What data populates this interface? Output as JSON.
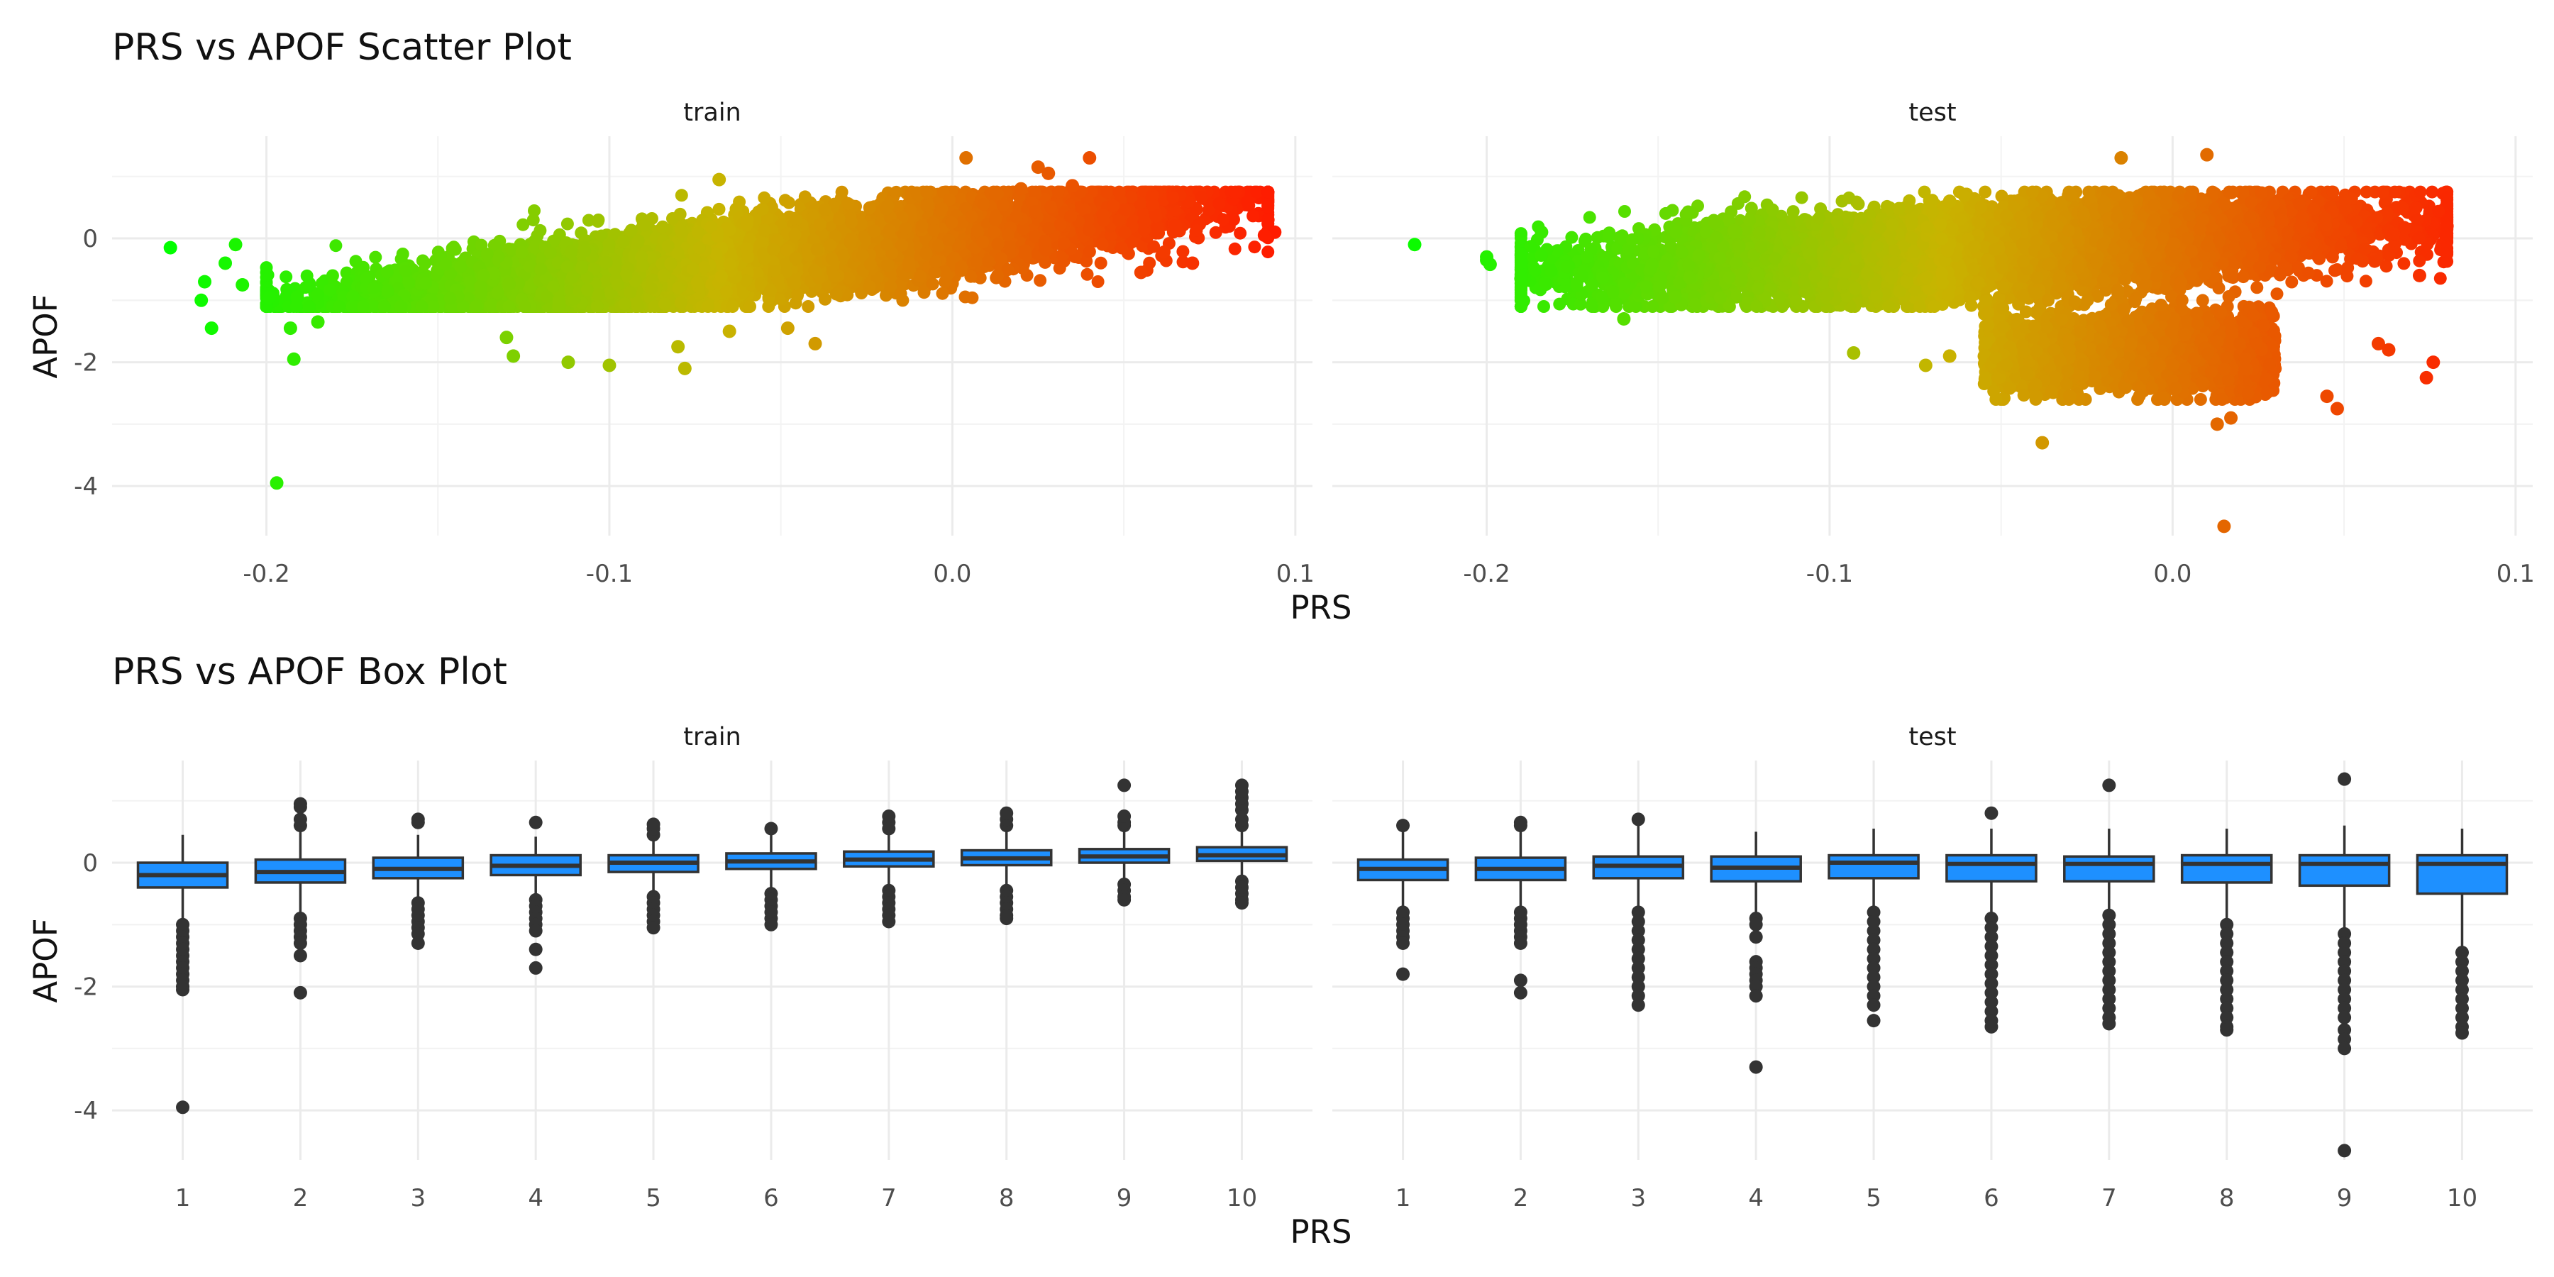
{
  "figure": {
    "scatter_title": "PRS vs APOF Scatter Plot",
    "box_title": "PRS vs APOF Box Plot"
  },
  "chart_data": [
    {
      "type": "scatter",
      "title": "PRS vs APOF Scatter Plot",
      "xlabel": "PRS",
      "ylabel": "APOF",
      "facets": [
        "train",
        "test"
      ],
      "xlim": [
        -0.245,
        0.105
      ],
      "ylim": [
        -4.8,
        1.65
      ],
      "x_ticks": [
        -0.2,
        -0.1,
        0.0,
        0.1
      ],
      "x_tick_labels": [
        "-0.2",
        "-0.1",
        "0.0",
        "0.1"
      ],
      "y_ticks": [
        -4,
        -2,
        0
      ],
      "y_tick_labels": [
        "-4",
        "-2",
        "0"
      ],
      "grid": true,
      "color_encoding": "PRS value, gradient green (low) to red (high)",
      "colors": {
        "low": "#00ff00",
        "mid": "#c8b400",
        "high": "#ff1a00"
      },
      "series": [
        {
          "facet": "train",
          "approximate_points": 9000,
          "trend": {
            "slope": 6.3,
            "intercept": 0.06
          },
          "spread_sd": 0.3,
          "x_range": [
            -0.2,
            0.092
          ],
          "outliers": [
            {
              "x": -0.228,
              "y": -0.15
            },
            {
              "x": -0.216,
              "y": -1.45
            },
            {
              "x": -0.218,
              "y": -0.7
            },
            {
              "x": -0.219,
              "y": -1.0
            },
            {
              "x": -0.212,
              "y": -0.4
            },
            {
              "x": -0.209,
              "y": -0.1
            },
            {
              "x": -0.207,
              "y": -0.75
            },
            {
              "x": -0.197,
              "y": -3.95
            },
            {
              "x": -0.192,
              "y": -1.95
            },
            {
              "x": -0.193,
              "y": -1.45
            },
            {
              "x": -0.185,
              "y": -1.35
            },
            {
              "x": -0.191,
              "y": -0.95
            },
            {
              "x": -0.13,
              "y": -1.6
            },
            {
              "x": -0.128,
              "y": -1.9
            },
            {
              "x": -0.112,
              "y": -2.0
            },
            {
              "x": -0.1,
              "y": -2.05
            },
            {
              "x": -0.078,
              "y": -2.1
            },
            {
              "x": -0.08,
              "y": -1.75
            },
            {
              "x": -0.065,
              "y": -1.5
            },
            {
              "x": -0.048,
              "y": -1.45
            },
            {
              "x": -0.04,
              "y": -1.7
            },
            {
              "x": -0.068,
              "y": 0.95
            },
            {
              "x": 0.004,
              "y": 1.3
            },
            {
              "x": 0.025,
              "y": 1.15
            },
            {
              "x": 0.028,
              "y": 1.05
            },
            {
              "x": 0.04,
              "y": 1.3
            },
            {
              "x": 0.02,
              "y": 0.8
            },
            {
              "x": 0.035,
              "y": 0.85
            },
            {
              "x": 0.055,
              "y": -0.55
            },
            {
              "x": 0.07,
              "y": -0.4
            },
            {
              "x": 0.092,
              "y": 0.3
            },
            {
              "x": 0.094,
              "y": 0.1
            },
            {
              "x": 0.091,
              "y": 0.05
            }
          ]
        },
        {
          "facet": "test",
          "approximate_points": 9000,
          "trend": {
            "slope": 3.2,
            "intercept": 0.0
          },
          "spread_sd": 0.33,
          "x_range": [
            -0.19,
            0.08
          ],
          "lower_cluster": {
            "x_range": [
              -0.055,
              0.03
            ],
            "y_center": -1.85,
            "y_sd": 0.32,
            "approximate_points": 2000
          },
          "outliers": [
            {
              "x": -0.221,
              "y": -0.1
            },
            {
              "x": -0.2,
              "y": -0.35
            },
            {
              "x": -0.199,
              "y": -0.42
            },
            {
              "x": -0.2,
              "y": -0.3
            },
            {
              "x": -0.19,
              "y": -0.65
            },
            {
              "x": -0.184,
              "y": 0.1
            },
            {
              "x": -0.16,
              "y": -1.3
            },
            {
              "x": -0.145,
              "y": -0.95
            },
            {
              "x": -0.093,
              "y": -1.85
            },
            {
              "x": -0.072,
              "y": -2.05
            },
            {
              "x": -0.065,
              "y": -1.9
            },
            {
              "x": -0.038,
              "y": -3.3
            },
            {
              "x": -0.03,
              "y": -2.55
            },
            {
              "x": -0.015,
              "y": 1.3
            },
            {
              "x": 0.01,
              "y": 1.35
            },
            {
              "x": -0.065,
              "y": 0.6
            },
            {
              "x": 0.015,
              "y": -4.65
            },
            {
              "x": 0.013,
              "y": -3.0
            },
            {
              "x": 0.017,
              "y": -2.9
            },
            {
              "x": 0.045,
              "y": -2.55
            },
            {
              "x": 0.048,
              "y": -2.75
            },
            {
              "x": 0.06,
              "y": -1.7
            },
            {
              "x": 0.063,
              "y": -1.8
            },
            {
              "x": 0.072,
              "y": -0.6
            },
            {
              "x": 0.076,
              "y": -2.0
            },
            {
              "x": 0.074,
              "y": -2.25
            },
            {
              "x": 0.08,
              "y": 0.2
            }
          ]
        }
      ]
    },
    {
      "type": "box",
      "title": "PRS vs APOF Box Plot",
      "xlabel": "PRS",
      "ylabel": "APOF",
      "facets": [
        "train",
        "test"
      ],
      "categories": [
        "1",
        "2",
        "3",
        "4",
        "5",
        "6",
        "7",
        "8",
        "9",
        "10"
      ],
      "ylim": [
        -4.8,
        1.65
      ],
      "y_ticks": [
        -4,
        -2,
        0
      ],
      "y_tick_labels": [
        "-4",
        "-2",
        "0"
      ],
      "grid": true,
      "box_fill": "#1e90ff",
      "line_color": "#333333",
      "series": [
        {
          "facet": "train",
          "boxes": [
            {
              "q1": -0.4,
              "median": -0.2,
              "q3": 0.0,
              "whisker_low": -0.95,
              "whisker_high": 0.45,
              "outliers": [
                -1.0,
                -1.1,
                -1.2,
                -1.3,
                -1.4,
                -1.5,
                -1.6,
                -1.7,
                -1.8,
                -1.9,
                -2.0,
                -2.05,
                -3.95
              ]
            },
            {
              "q1": -0.32,
              "median": -0.15,
              "q3": 0.05,
              "whisker_low": -0.85,
              "whisker_high": 0.55,
              "outliers": [
                -0.9,
                -1.0,
                -1.1,
                -1.2,
                -1.3,
                -1.5,
                -2.1,
                0.6,
                0.7,
                0.9,
                0.95
              ]
            },
            {
              "q1": -0.25,
              "median": -0.1,
              "q3": 0.08,
              "whisker_low": -0.6,
              "whisker_high": 0.45,
              "outliers": [
                -0.65,
                -0.75,
                -0.85,
                -0.95,
                -1.05,
                -1.15,
                -1.3,
                0.65,
                0.7
              ]
            },
            {
              "q1": -0.2,
              "median": -0.05,
              "q3": 0.12,
              "whisker_low": -0.55,
              "whisker_high": 0.42,
              "outliers": [
                -0.6,
                -0.7,
                -0.8,
                -0.9,
                -1.0,
                -1.1,
                -1.4,
                -1.7,
                0.65
              ]
            },
            {
              "q1": -0.15,
              "median": 0.0,
              "q3": 0.12,
              "whisker_low": -0.5,
              "whisker_high": 0.42,
              "outliers": [
                -0.55,
                -0.65,
                -0.75,
                -0.85,
                -0.95,
                -1.05,
                0.45,
                0.55,
                0.62
              ]
            },
            {
              "q1": -0.1,
              "median": 0.02,
              "q3": 0.15,
              "whisker_low": -0.45,
              "whisker_high": 0.45,
              "outliers": [
                -0.5,
                -0.6,
                -0.7,
                -0.8,
                -0.9,
                -1.0,
                0.55
              ]
            },
            {
              "q1": -0.06,
              "median": 0.05,
              "q3": 0.18,
              "whisker_low": -0.42,
              "whisker_high": 0.5,
              "outliers": [
                -0.45,
                -0.55,
                -0.65,
                -0.75,
                -0.85,
                -0.95,
                0.55,
                0.65,
                0.75
              ]
            },
            {
              "q1": -0.04,
              "median": 0.07,
              "q3": 0.2,
              "whisker_low": -0.38,
              "whisker_high": 0.55,
              "outliers": [
                -0.45,
                -0.55,
                -0.65,
                -0.75,
                -0.85,
                -0.9,
                0.6,
                0.7,
                0.8
              ]
            },
            {
              "q1": 0.0,
              "median": 0.1,
              "q3": 0.22,
              "whisker_low": -0.3,
              "whisker_high": 0.55,
              "outliers": [
                -0.35,
                -0.45,
                -0.55,
                -0.6,
                0.6,
                0.65,
                0.75,
                1.25
              ]
            },
            {
              "q1": 0.03,
              "median": 0.12,
              "q3": 0.25,
              "whisker_low": -0.27,
              "whisker_high": 0.55,
              "outliers": [
                -0.3,
                -0.4,
                -0.5,
                -0.6,
                -0.65,
                0.6,
                0.7,
                0.85,
                0.95,
                1.05,
                1.15,
                1.25
              ]
            }
          ]
        },
        {
          "facet": "test",
          "boxes": [
            {
              "q1": -0.28,
              "median": -0.1,
              "q3": 0.05,
              "whisker_low": -0.75,
              "whisker_high": 0.55,
              "outliers": [
                -0.8,
                -0.9,
                -1.0,
                -1.1,
                -1.2,
                -1.3,
                -1.8,
                0.6
              ]
            },
            {
              "q1": -0.28,
              "median": -0.1,
              "q3": 0.08,
              "whisker_low": -0.75,
              "whisker_high": 0.55,
              "outliers": [
                -0.8,
                -0.9,
                -1.0,
                -1.1,
                -1.2,
                -1.3,
                -1.9,
                -2.1,
                0.6,
                0.65
              ]
            },
            {
              "q1": -0.25,
              "median": -0.05,
              "q3": 0.1,
              "whisker_low": -0.75,
              "whisker_high": 0.6,
              "outliers": [
                -0.8,
                -0.95,
                -1.1,
                -1.25,
                -1.4,
                -1.55,
                -1.7,
                -1.85,
                -2.0,
                -2.15,
                -2.3,
                0.7
              ]
            },
            {
              "q1": -0.3,
              "median": -0.08,
              "q3": 0.1,
              "whisker_low": -0.85,
              "whisker_high": 0.5,
              "outliers": [
                -0.9,
                -1.0,
                -1.2,
                -1.6,
                -1.7,
                -1.8,
                -1.9,
                -2.0,
                -2.15,
                -3.3
              ]
            },
            {
              "q1": -0.25,
              "median": 0.0,
              "q3": 0.12,
              "whisker_low": -0.75,
              "whisker_high": 0.55,
              "outliers": [
                -0.8,
                -0.95,
                -1.1,
                -1.25,
                -1.4,
                -1.55,
                -1.7,
                -1.85,
                -2.0,
                -2.15,
                -2.3,
                -2.55
              ]
            },
            {
              "q1": -0.3,
              "median": -0.02,
              "q3": 0.12,
              "whisker_low": -0.85,
              "whisker_high": 0.55,
              "outliers": [
                -0.9,
                -1.05,
                -1.2,
                -1.35,
                -1.5,
                -1.65,
                -1.8,
                -1.95,
                -2.1,
                -2.25,
                -2.4,
                -2.55,
                -2.65,
                0.8
              ]
            },
            {
              "q1": -0.3,
              "median": -0.02,
              "q3": 0.1,
              "whisker_low": -0.8,
              "whisker_high": 0.55,
              "outliers": [
                -0.85,
                -1.0,
                -1.15,
                -1.3,
                -1.45,
                -1.6,
                -1.75,
                -1.9,
                -2.05,
                -2.2,
                -2.35,
                -2.5,
                -2.6,
                1.25
              ]
            },
            {
              "q1": -0.32,
              "median": -0.02,
              "q3": 0.12,
              "whisker_low": -0.95,
              "whisker_high": 0.55,
              "outliers": [
                -1.0,
                -1.15,
                -1.3,
                -1.45,
                -1.6,
                -1.75,
                -1.9,
                -2.05,
                -2.2,
                -2.35,
                -2.5,
                -2.65,
                -2.7
              ]
            },
            {
              "q1": -0.37,
              "median": -0.02,
              "q3": 0.12,
              "whisker_low": -1.05,
              "whisker_high": 0.6,
              "outliers": [
                -1.15,
                -1.3,
                -1.45,
                -1.6,
                -1.75,
                -1.9,
                -2.05,
                -2.2,
                -2.35,
                -2.5,
                -2.7,
                -2.85,
                -3.0,
                -4.65,
                1.35
              ]
            },
            {
              "q1": -0.5,
              "median": -0.02,
              "q3": 0.12,
              "whisker_low": -1.4,
              "whisker_high": 0.55,
              "outliers": [
                -1.45,
                -1.6,
                -1.75,
                -1.9,
                -2.05,
                -2.2,
                -2.35,
                -2.5,
                -2.65,
                -2.75
              ]
            }
          ]
        }
      ]
    }
  ]
}
